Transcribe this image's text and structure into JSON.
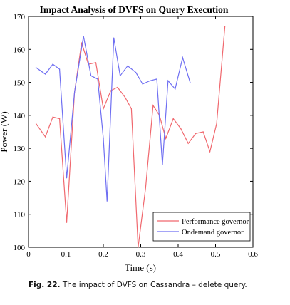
{
  "chart_data": {
    "type": "line",
    "title": "Impact Analysis of DVFS on Query Execution",
    "xlabel": "Time (s)",
    "ylabel": "Power (W)",
    "xlim": [
      0,
      0.6
    ],
    "ylim": [
      100,
      170
    ],
    "xticks": [
      "0",
      "0.1",
      "0.2",
      "0.3",
      "0.4",
      "0.5",
      "0.6"
    ],
    "yticks": [
      "100",
      "110",
      "120",
      "130",
      "140",
      "150",
      "160",
      "170"
    ],
    "grid": false,
    "legend_position": "bottom-right",
    "series": [
      {
        "name": "Performance governor",
        "color": "#f0686e",
        "x": [
          0.02,
          0.045,
          0.065,
          0.083,
          0.102,
          0.123,
          0.142,
          0.16,
          0.18,
          0.2,
          0.22,
          0.238,
          0.258,
          0.275,
          0.293,
          0.313,
          0.333,
          0.35,
          0.367,
          0.387,
          0.407,
          0.427,
          0.447,
          0.467,
          0.485,
          0.503,
          0.525
        ],
        "y": [
          137.5,
          133.5,
          139.5,
          139.0,
          107.5,
          147.0,
          162.0,
          155.5,
          156.0,
          142.0,
          147.5,
          148.5,
          145.5,
          142.0,
          100.0,
          118.0,
          143.0,
          140.0,
          133.0,
          139.0,
          136.0,
          131.5,
          134.5,
          135.0,
          129.0,
          137.5,
          167.0
        ]
      },
      {
        "name": "Ondemand governor",
        "color": "#6f6ff2",
        "x": [
          0.02,
          0.045,
          0.065,
          0.083,
          0.102,
          0.123,
          0.147,
          0.167,
          0.185,
          0.2,
          0.21,
          0.228,
          0.245,
          0.265,
          0.287,
          0.305,
          0.325,
          0.343,
          0.358,
          0.373,
          0.392,
          0.412,
          0.432
        ],
        "y": [
          154.5,
          152.5,
          155.5,
          154.0,
          121.0,
          147.0,
          164.0,
          152.0,
          151.0,
          133.0,
          114.0,
          163.5,
          152.0,
          155.0,
          153.0,
          149.5,
          150.5,
          151.0,
          125.0,
          150.5,
          148.0,
          157.5,
          150.0
        ]
      }
    ]
  },
  "caption": {
    "label": "Fig. 22.",
    "text": "The impact of DVFS on Cassandra – delete query."
  }
}
